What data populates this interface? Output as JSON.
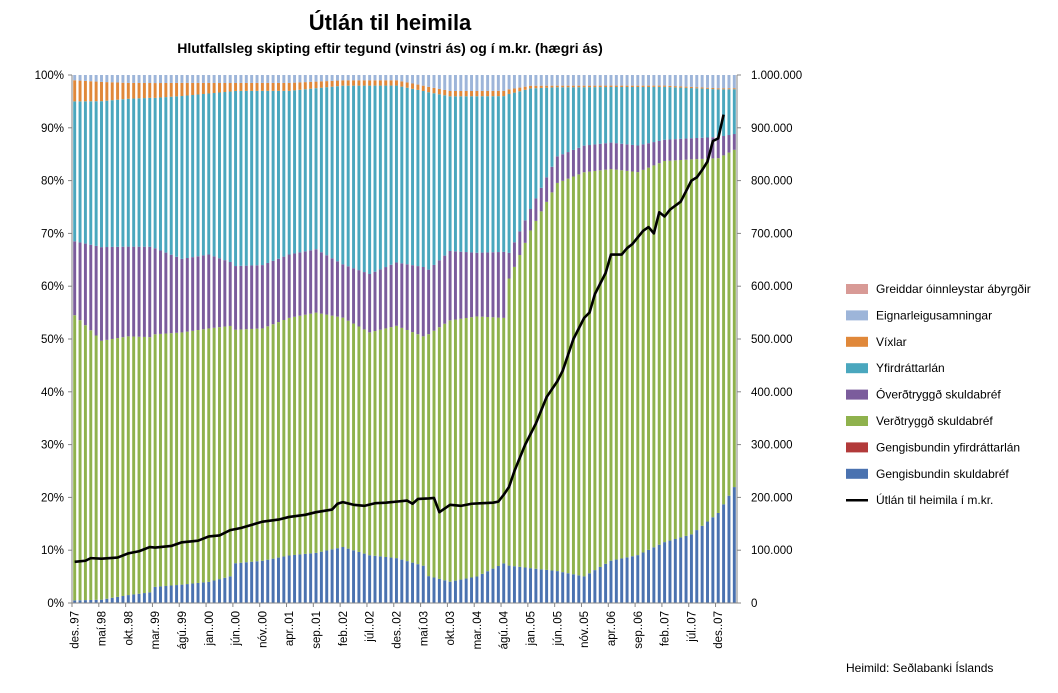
{
  "chart_data": {
    "type": "bar",
    "stacked": true,
    "title": "Útlán til heimila",
    "subtitle": "Hlutfallsleg skipting eftir tegund (vinstri ás) og í m.kr. (hægri ás)",
    "source": "Heimild: Seðlabanki Íslands",
    "period_start": "1997-12",
    "period_end": "2008-03",
    "n_periods": 124,
    "left_axis": {
      "ylim": [
        0,
        100
      ],
      "ticks": [
        0,
        10,
        20,
        30,
        40,
        50,
        60,
        70,
        80,
        90,
        100
      ],
      "tick_labels": [
        "0%",
        "10%",
        "20%",
        "30%",
        "40%",
        "50%",
        "60%",
        "70%",
        "80%",
        "90%",
        "100%"
      ]
    },
    "right_axis": {
      "ylim": [
        0,
        1000000
      ],
      "ticks": [
        0,
        100000,
        200000,
        300000,
        400000,
        500000,
        600000,
        700000,
        800000,
        900000,
        1000000
      ],
      "tick_labels": [
        "0",
        "100.000",
        "200.000",
        "300.000",
        "400.000",
        "500.000",
        "600.000",
        "700.000",
        "800.000",
        "900.000",
        "1.000.000"
      ]
    },
    "x_tick_labels": [
      {
        "index": 0,
        "label": "des..97"
      },
      {
        "index": 5,
        "label": "maí.98"
      },
      {
        "index": 10,
        "label": "okt..98"
      },
      {
        "index": 15,
        "label": "mar..99"
      },
      {
        "index": 20,
        "label": "ágú..99"
      },
      {
        "index": 25,
        "label": "jan..00"
      },
      {
        "index": 30,
        "label": "jún..00"
      },
      {
        "index": 35,
        "label": "nóv..00"
      },
      {
        "index": 40,
        "label": "apr..01"
      },
      {
        "index": 45,
        "label": "sep..01"
      },
      {
        "index": 50,
        "label": "feb..02"
      },
      {
        "index": 55,
        "label": "júl..02"
      },
      {
        "index": 60,
        "label": "des..02"
      },
      {
        "index": 65,
        "label": "maí.03"
      },
      {
        "index": 70,
        "label": "okt..03"
      },
      {
        "index": 75,
        "label": "mar..04"
      },
      {
        "index": 80,
        "label": "ágú..04"
      },
      {
        "index": 85,
        "label": "jan..05"
      },
      {
        "index": 90,
        "label": "jún..05"
      },
      {
        "index": 95,
        "label": "nóv..05"
      },
      {
        "index": 100,
        "label": "apr..06"
      },
      {
        "index": 105,
        "label": "sep..06"
      },
      {
        "index": 110,
        "label": "feb..07"
      },
      {
        "index": 115,
        "label": "júl..07"
      },
      {
        "index": 120,
        "label": "des..07"
      }
    ],
    "series_interpolation": "linear between [month_index, value] anchor points",
    "series": [
      {
        "name": "Gengisbundin skuldabréf",
        "color": "#4a72b0",
        "unit": "%",
        "points": [
          [
            0,
            0.5
          ],
          [
            5,
            0.6
          ],
          [
            10,
            1.5
          ],
          [
            14,
            2
          ],
          [
            15,
            3
          ],
          [
            20,
            3.5
          ],
          [
            25,
            4
          ],
          [
            29,
            5
          ],
          [
            30,
            7.5
          ],
          [
            35,
            8
          ],
          [
            40,
            9
          ],
          [
            45,
            9.5
          ],
          [
            50,
            10.5
          ],
          [
            55,
            9
          ],
          [
            60,
            8.5
          ],
          [
            65,
            7
          ],
          [
            66,
            5
          ],
          [
            70,
            4
          ],
          [
            75,
            5
          ],
          [
            80,
            7.5
          ],
          [
            85,
            6.5
          ],
          [
            90,
            6
          ],
          [
            95,
            5
          ],
          [
            100,
            8
          ],
          [
            105,
            9
          ],
          [
            110,
            11.5
          ],
          [
            115,
            13
          ],
          [
            120,
            17
          ],
          [
            123,
            22
          ]
        ]
      },
      {
        "name": "Gengisbundin yfirdráttarlán",
        "color": "#b23a3a",
        "unit": "%",
        "points": [
          [
            0,
            0
          ],
          [
            123,
            0
          ]
        ]
      },
      {
        "name": "Verðtryggð skuldabréf",
        "color": "#8fb24d",
        "unit": "%",
        "points": [
          [
            0,
            54
          ],
          [
            5,
            47
          ],
          [
            10,
            49
          ],
          [
            14,
            48
          ],
          [
            15,
            47
          ],
          [
            20,
            48
          ],
          [
            25,
            48
          ],
          [
            29,
            47
          ],
          [
            30,
            44
          ],
          [
            35,
            44
          ],
          [
            40,
            45
          ],
          [
            45,
            45.5
          ],
          [
            50,
            43
          ],
          [
            55,
            42
          ],
          [
            60,
            44
          ],
          [
            65,
            43
          ],
          [
            66,
            45
          ],
          [
            70,
            49
          ],
          [
            75,
            49
          ],
          [
            80,
            46.5
          ],
          [
            81,
            56
          ],
          [
            85,
            63
          ],
          [
            90,
            73
          ],
          [
            95,
            76
          ],
          [
            100,
            74
          ],
          [
            105,
            72
          ],
          [
            110,
            72
          ],
          [
            115,
            71
          ],
          [
            120,
            67
          ],
          [
            123,
            64
          ]
        ]
      },
      {
        "name": "Óverðtryggð skuldabréf",
        "color": "#7b5c9c",
        "unit": "%",
        "points": [
          [
            0,
            14
          ],
          [
            5,
            17
          ],
          [
            10,
            17
          ],
          [
            14,
            17
          ],
          [
            15,
            16
          ],
          [
            20,
            14
          ],
          [
            25,
            14
          ],
          [
            29,
            12
          ],
          [
            30,
            12
          ],
          [
            35,
            12
          ],
          [
            40,
            12
          ],
          [
            45,
            12
          ],
          [
            50,
            10
          ],
          [
            55,
            11
          ],
          [
            60,
            12
          ],
          [
            65,
            13
          ],
          [
            66,
            12
          ],
          [
            70,
            13
          ],
          [
            75,
            12
          ],
          [
            80,
            12.5
          ],
          [
            81,
            5
          ],
          [
            85,
            4
          ],
          [
            90,
            5
          ],
          [
            95,
            5
          ],
          [
            100,
            5
          ],
          [
            105,
            5
          ],
          [
            110,
            4
          ],
          [
            115,
            4
          ],
          [
            120,
            4
          ],
          [
            123,
            3
          ]
        ]
      },
      {
        "name": "Yfirdráttarlán",
        "color": "#4aa7be",
        "unit": "%",
        "points": [
          [
            0,
            26.5
          ],
          [
            5,
            26.5
          ],
          [
            10,
            28
          ],
          [
            14,
            28
          ],
          [
            15,
            28
          ],
          [
            20,
            31
          ],
          [
            25,
            30.5
          ],
          [
            29,
            32
          ],
          [
            30,
            33
          ],
          [
            35,
            33
          ],
          [
            40,
            31
          ],
          [
            45,
            30.5
          ],
          [
            50,
            33.5
          ],
          [
            55,
            35.5
          ],
          [
            60,
            33.5
          ],
          [
            65,
            33
          ],
          [
            66,
            33
          ],
          [
            70,
            29
          ],
          [
            75,
            29.5
          ],
          [
            80,
            29.5
          ],
          [
            81,
            31
          ],
          [
            85,
            22.5
          ],
          [
            90,
            13
          ],
          [
            95,
            11
          ],
          [
            100,
            10.5
          ],
          [
            105,
            11
          ],
          [
            110,
            10
          ],
          [
            115,
            9.5
          ],
          [
            120,
            9
          ],
          [
            123,
            8.5
          ]
        ]
      },
      {
        "name": "Víxlar",
        "color": "#e0883a",
        "unit": "%",
        "points": [
          [
            0,
            4
          ],
          [
            10,
            3
          ],
          [
            20,
            2.5
          ],
          [
            30,
            1.5
          ],
          [
            40,
            1.5
          ],
          [
            50,
            1
          ],
          [
            60,
            1
          ],
          [
            70,
            1
          ],
          [
            80,
            1
          ],
          [
            85,
            0.5
          ],
          [
            90,
            0.3
          ],
          [
            123,
            0.2
          ]
        ]
      },
      {
        "name": "Eignarleigusamningar",
        "color": "#9db5d9",
        "unit": "%",
        "points": [
          [
            0,
            1
          ],
          [
            10,
            1.5
          ],
          [
            20,
            1.5
          ],
          [
            30,
            1.5
          ],
          [
            40,
            1.5
          ],
          [
            50,
            1
          ],
          [
            60,
            1
          ],
          [
            65,
            2
          ],
          [
            70,
            3
          ],
          [
            80,
            3
          ],
          [
            85,
            2
          ],
          [
            90,
            2
          ],
          [
            100,
            2
          ],
          [
            110,
            2
          ],
          [
            120,
            2.5
          ],
          [
            123,
            2.5
          ]
        ]
      },
      {
        "name": "Greiddar óinnleystar ábyrgðir",
        "color": "#d89a96",
        "unit": "%",
        "points": [
          [
            0,
            0
          ],
          [
            123,
            0
          ]
        ]
      }
    ],
    "line_series": {
      "name": "Útlán til heimila í m.kr.",
      "color": "#000000",
      "axis": "right",
      "points": [
        [
          0,
          78000
        ],
        [
          2,
          80000
        ],
        [
          3,
          85000
        ],
        [
          5,
          84000
        ],
        [
          8,
          86000
        ],
        [
          10,
          94000
        ],
        [
          12,
          98000
        ],
        [
          14,
          106000
        ],
        [
          15,
          105000
        ],
        [
          18,
          108000
        ],
        [
          20,
          115000
        ],
        [
          23,
          118000
        ],
        [
          25,
          126000
        ],
        [
          27,
          128000
        ],
        [
          29,
          138000
        ],
        [
          31,
          142000
        ],
        [
          33,
          148000
        ],
        [
          35,
          154000
        ],
        [
          38,
          158000
        ],
        [
          40,
          163000
        ],
        [
          43,
          167000
        ],
        [
          45,
          172000
        ],
        [
          48,
          177000
        ],
        [
          49,
          188000
        ],
        [
          50,
          191000
        ],
        [
          52,
          186000
        ],
        [
          54,
          184000
        ],
        [
          56,
          189000
        ],
        [
          58,
          190000
        ],
        [
          60,
          192000
        ],
        [
          62,
          194000
        ],
        [
          63,
          188000
        ],
        [
          64,
          197000
        ],
        [
          66,
          198000
        ],
        [
          67,
          199000
        ],
        [
          68,
          172000
        ],
        [
          70,
          186000
        ],
        [
          72,
          184000
        ],
        [
          74,
          188000
        ],
        [
          76,
          189000
        ],
        [
          78,
          190000
        ],
        [
          79,
          192000
        ],
        [
          80,
          205000
        ],
        [
          81,
          220000
        ],
        [
          82,
          250000
        ],
        [
          84,
          300000
        ],
        [
          86,
          340000
        ],
        [
          88,
          390000
        ],
        [
          90,
          420000
        ],
        [
          91,
          440000
        ],
        [
          93,
          500000
        ],
        [
          95,
          540000
        ],
        [
          96,
          550000
        ],
        [
          97,
          585000
        ],
        [
          99,
          625000
        ],
        [
          100,
          660000
        ],
        [
          102,
          660000
        ],
        [
          103,
          672000
        ],
        [
          104,
          680000
        ],
        [
          106,
          705000
        ],
        [
          107,
          712000
        ],
        [
          108,
          700000
        ],
        [
          109,
          740000
        ],
        [
          110,
          732000
        ],
        [
          111,
          745000
        ],
        [
          113,
          760000
        ],
        [
          114,
          780000
        ],
        [
          115,
          800000
        ],
        [
          116,
          806000
        ],
        [
          117,
          820000
        ],
        [
          118,
          836000
        ],
        [
          119,
          875000
        ],
        [
          120,
          880000
        ],
        [
          121,
          925000
        ]
      ]
    }
  }
}
